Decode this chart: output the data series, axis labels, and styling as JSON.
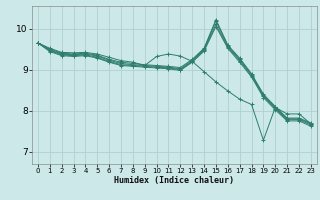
{
  "xlabel": "Humidex (Indice chaleur)",
  "bg_color": "#cce8e8",
  "grid_color": "#b0d0d0",
  "line_color": "#2e7d6e",
  "xlim": [
    -0.5,
    23.5
  ],
  "ylim": [
    6.7,
    10.55
  ],
  "yticks": [
    7,
    8,
    9,
    10
  ],
  "xticks": [
    0,
    1,
    2,
    3,
    4,
    5,
    6,
    7,
    8,
    9,
    10,
    11,
    12,
    13,
    14,
    15,
    16,
    17,
    18,
    19,
    20,
    21,
    22,
    23
  ],
  "series": [
    [
      9.65,
      9.52,
      9.42,
      9.41,
      9.42,
      9.38,
      9.3,
      9.22,
      9.18,
      9.1,
      9.32,
      9.38,
      9.33,
      9.2,
      8.95,
      8.7,
      8.48,
      8.28,
      8.15,
      7.28,
      8.08,
      7.92,
      7.92,
      7.68
    ],
    [
      9.65,
      9.5,
      9.4,
      9.38,
      9.4,
      9.35,
      9.25,
      9.18,
      9.15,
      9.12,
      9.1,
      9.08,
      9.05,
      9.25,
      9.52,
      10.22,
      9.6,
      9.28,
      8.9,
      8.4,
      8.1,
      7.82,
      7.82,
      7.7
    ],
    [
      9.65,
      9.48,
      9.38,
      9.36,
      9.38,
      9.33,
      9.23,
      9.15,
      9.12,
      9.1,
      9.08,
      9.06,
      9.02,
      9.22,
      9.5,
      10.18,
      9.58,
      9.25,
      8.88,
      8.38,
      8.08,
      7.8,
      7.8,
      7.68
    ],
    [
      9.65,
      9.46,
      9.36,
      9.34,
      9.36,
      9.3,
      9.2,
      9.12,
      9.1,
      9.08,
      9.06,
      9.04,
      9.0,
      9.2,
      9.48,
      10.1,
      9.55,
      9.22,
      8.85,
      8.35,
      8.05,
      7.78,
      7.78,
      7.65
    ],
    [
      9.65,
      9.44,
      9.34,
      9.32,
      9.34,
      9.28,
      9.18,
      9.1,
      9.08,
      9.06,
      9.04,
      9.02,
      8.98,
      9.18,
      9.45,
      10.05,
      9.52,
      9.18,
      8.82,
      8.32,
      8.02,
      7.75,
      7.75,
      7.62
    ]
  ]
}
